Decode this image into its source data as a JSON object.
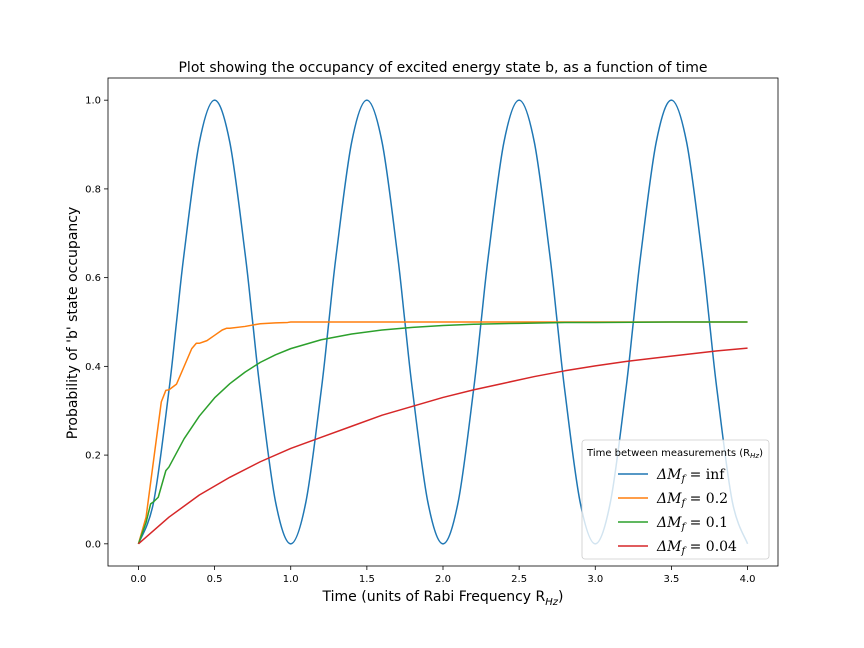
{
  "chart_data": {
    "type": "line",
    "title": "Plot showing the occupancy of excited energy state b, as a function of time",
    "xlabel": "Time (units of Rabi Frequency R",
    "xlabel_sub": "Hz",
    "xlabel_end": ")",
    "ylabel": "Probability of 'b' state occupancy",
    "xlim": [
      -0.2,
      4.2
    ],
    "ylim": [
      -0.05,
      1.05
    ],
    "xticks": [
      0.0,
      0.5,
      1.0,
      1.5,
      2.0,
      2.5,
      3.0,
      3.5,
      4.0
    ],
    "xtick_labels": [
      "0.0",
      "0.5",
      "1.0",
      "1.5",
      "2.0",
      "2.5",
      "3.0",
      "3.5",
      "4.0"
    ],
    "yticks": [
      0.0,
      0.2,
      0.4,
      0.6,
      0.8,
      1.0
    ],
    "ytick_labels": [
      "0.0",
      "0.2",
      "0.4",
      "0.6",
      "0.8",
      "1.0"
    ],
    "grid": false,
    "legend": {
      "placement": "lower-right",
      "title": "Time between measurements (R",
      "title_sub": "Hz",
      "title_end": ")"
    },
    "series": [
      {
        "name": "ΔM",
        "name_sub": "f",
        "name_rest": " = inf",
        "color": "#1f77b4",
        "x": [
          0.0,
          0.1,
          0.2,
          0.25,
          0.3,
          0.4,
          0.5,
          0.6,
          0.7,
          0.75,
          0.8,
          0.9,
          1.0,
          1.1,
          1.2,
          1.25,
          1.3,
          1.4,
          1.5,
          1.6,
          1.7,
          1.75,
          1.8,
          1.9,
          2.0,
          2.1,
          2.2,
          2.25,
          2.3,
          2.4,
          2.5,
          2.6,
          2.7,
          2.75,
          2.8,
          2.9,
          3.0,
          3.1,
          3.2,
          3.25,
          3.3,
          3.4,
          3.5,
          3.6,
          3.7,
          3.75,
          3.8,
          3.9,
          4.0
        ],
        "y": [
          0.0,
          0.095,
          0.345,
          0.5,
          0.655,
          0.905,
          1.0,
          0.905,
          0.655,
          0.5,
          0.345,
          0.095,
          0.0,
          0.095,
          0.345,
          0.5,
          0.655,
          0.905,
          1.0,
          0.905,
          0.655,
          0.5,
          0.345,
          0.095,
          0.0,
          0.095,
          0.345,
          0.5,
          0.655,
          0.905,
          1.0,
          0.905,
          0.655,
          0.5,
          0.345,
          0.095,
          0.0,
          0.095,
          0.345,
          0.5,
          0.655,
          0.905,
          1.0,
          0.905,
          0.655,
          0.5,
          0.345,
          0.095,
          0.0
        ]
      },
      {
        "name": "ΔM",
        "name_sub": "f",
        "name_rest": " = 0.2",
        "color": "#ff7f0e",
        "x": [
          0.0,
          0.05,
          0.1,
          0.15,
          0.18,
          0.2,
          0.25,
          0.3,
          0.35,
          0.38,
          0.4,
          0.45,
          0.5,
          0.55,
          0.58,
          0.6,
          0.7,
          0.78,
          0.8,
          0.9,
          0.98,
          1.0,
          1.2,
          1.4,
          1.6,
          1.8,
          2.0,
          2.5,
          3.0,
          3.5,
          4.0
        ],
        "y": [
          0.0,
          0.06,
          0.19,
          0.32,
          0.346,
          0.347,
          0.36,
          0.4,
          0.44,
          0.452,
          0.452,
          0.458,
          0.47,
          0.482,
          0.486,
          0.486,
          0.49,
          0.495,
          0.496,
          0.498,
          0.499,
          0.5,
          0.5,
          0.5,
          0.5,
          0.5,
          0.5,
          0.5,
          0.5,
          0.5,
          0.5
        ]
      },
      {
        "name": "ΔM",
        "name_sub": "f",
        "name_rest": " = 0.1",
        "color": "#2ca02c",
        "x": [
          0.0,
          0.05,
          0.08,
          0.1,
          0.13,
          0.18,
          0.2,
          0.3,
          0.4,
          0.5,
          0.6,
          0.7,
          0.8,
          0.9,
          1.0,
          1.2,
          1.4,
          1.6,
          1.8,
          2.0,
          2.2,
          2.5,
          2.8,
          3.0,
          3.5,
          4.0
        ],
        "y": [
          0.0,
          0.048,
          0.09,
          0.095,
          0.105,
          0.165,
          0.173,
          0.237,
          0.288,
          0.329,
          0.361,
          0.387,
          0.409,
          0.426,
          0.44,
          0.46,
          0.473,
          0.482,
          0.488,
          0.492,
          0.495,
          0.497,
          0.499,
          0.499,
          0.5,
          0.5
        ]
      },
      {
        "name": "ΔM",
        "name_sub": "f",
        "name_rest": " = 0.04",
        "color": "#d62728",
        "x": [
          0.0,
          0.2,
          0.4,
          0.6,
          0.8,
          1.0,
          1.2,
          1.4,
          1.6,
          1.8,
          2.0,
          2.2,
          2.4,
          2.6,
          2.8,
          3.0,
          3.2,
          3.4,
          3.6,
          3.8,
          4.0
        ],
        "y": [
          0.0,
          0.06,
          0.11,
          0.15,
          0.185,
          0.215,
          0.24,
          0.265,
          0.29,
          0.31,
          0.33,
          0.347,
          0.362,
          0.377,
          0.39,
          0.401,
          0.411,
          0.419,
          0.427,
          0.435,
          0.441
        ]
      }
    ]
  }
}
